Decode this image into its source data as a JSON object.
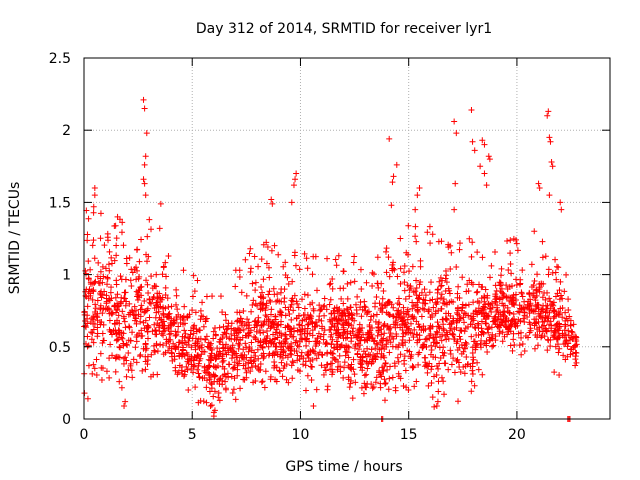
{
  "chart_data": {
    "type": "scatter",
    "title": "Day 312 of 2014, SRMTID for receiver lyr1",
    "xlabel": "GPS time / hours",
    "ylabel": "SRMTID / TECUs",
    "xlim": [
      0,
      24.3
    ],
    "ylim": [
      0,
      2.5
    ],
    "xticks": [
      0,
      5,
      10,
      15,
      20
    ],
    "xtick_labels": [
      "0",
      "5",
      "10",
      "15",
      "20"
    ],
    "yticks": [
      0,
      0.5,
      1,
      1.5,
      2,
      2.5
    ],
    "ytick_labels": [
      "0",
      "0.5",
      "1",
      "1.5",
      "2",
      "2.5"
    ],
    "grid": true,
    "marker": "+",
    "color": "#ff0000",
    "envelope": {
      "description": "approximate per-hour band of the dense point cloud (hour: [low, high] in TECU)",
      "hours": [
        0,
        1,
        2,
        3,
        4,
        5,
        6,
        7,
        8,
        9,
        10,
        11,
        12,
        13,
        14,
        15,
        16,
        17,
        18,
        19,
        20,
        21,
        22,
        22.8
      ],
      "low": [
        0.25,
        0.3,
        0.12,
        0.3,
        0.3,
        0.2,
        0.05,
        0.15,
        0.2,
        0.25,
        0.3,
        0.2,
        0.25,
        0.1,
        0.2,
        0.2,
        0.1,
        0.15,
        0.2,
        0.45,
        0.45,
        0.5,
        0.35,
        0.35
      ],
      "high": [
        1.2,
        1.2,
        1.1,
        1.15,
        0.9,
        0.8,
        0.65,
        0.8,
        1.0,
        0.95,
        0.95,
        0.85,
        0.9,
        0.9,
        0.95,
        1.1,
        1.1,
        1.0,
        1.0,
        1.05,
        1.0,
        1.0,
        0.95,
        0.55
      ]
    },
    "spikes": [
      {
        "x": 0.5,
        "y": 1.6
      },
      {
        "x": 0.5,
        "y": 1.55
      },
      {
        "x": 0.45,
        "y": 1.47
      },
      {
        "x": 1.55,
        "y": 1.4
      },
      {
        "x": 2.75,
        "y": 2.21
      },
      {
        "x": 2.8,
        "y": 2.15
      },
      {
        "x": 2.9,
        "y": 1.98
      },
      {
        "x": 2.85,
        "y": 1.82
      },
      {
        "x": 2.8,
        "y": 1.76
      },
      {
        "x": 2.75,
        "y": 1.66
      },
      {
        "x": 2.8,
        "y": 1.63
      },
      {
        "x": 2.85,
        "y": 1.55
      },
      {
        "x": 3.55,
        "y": 1.49
      },
      {
        "x": 3.5,
        "y": 1.32
      },
      {
        "x": 8.65,
        "y": 1.52
      },
      {
        "x": 8.7,
        "y": 1.49
      },
      {
        "x": 9.8,
        "y": 1.7
      },
      {
        "x": 9.75,
        "y": 1.66
      },
      {
        "x": 9.7,
        "y": 1.62
      },
      {
        "x": 9.6,
        "y": 1.5
      },
      {
        "x": 14.1,
        "y": 1.94
      },
      {
        "x": 14.45,
        "y": 1.76
      },
      {
        "x": 14.3,
        "y": 1.68
      },
      {
        "x": 14.25,
        "y": 1.64
      },
      {
        "x": 14.2,
        "y": 1.48
      },
      {
        "x": 15.5,
        "y": 1.6
      },
      {
        "x": 15.4,
        "y": 1.55
      },
      {
        "x": 15.3,
        "y": 1.45
      },
      {
        "x": 17.1,
        "y": 2.06
      },
      {
        "x": 17.2,
        "y": 1.98
      },
      {
        "x": 17.15,
        "y": 1.63
      },
      {
        "x": 17.1,
        "y": 1.45
      },
      {
        "x": 17.9,
        "y": 2.14
      },
      {
        "x": 17.95,
        "y": 1.92
      },
      {
        "x": 18.05,
        "y": 1.86
      },
      {
        "x": 18.4,
        "y": 1.93
      },
      {
        "x": 18.5,
        "y": 1.9
      },
      {
        "x": 18.7,
        "y": 1.82
      },
      {
        "x": 18.75,
        "y": 1.8
      },
      {
        "x": 18.3,
        "y": 1.75
      },
      {
        "x": 18.5,
        "y": 1.7
      },
      {
        "x": 18.6,
        "y": 1.62
      },
      {
        "x": 21.45,
        "y": 2.13
      },
      {
        "x": 21.4,
        "y": 2.1
      },
      {
        "x": 21.5,
        "y": 1.95
      },
      {
        "x": 21.55,
        "y": 1.92
      },
      {
        "x": 21.6,
        "y": 1.78
      },
      {
        "x": 21.65,
        "y": 1.75
      },
      {
        "x": 21.0,
        "y": 1.63
      },
      {
        "x": 21.05,
        "y": 1.6
      },
      {
        "x": 21.5,
        "y": 1.55
      },
      {
        "x": 22.0,
        "y": 1.5
      },
      {
        "x": 22.05,
        "y": 1.45
      },
      {
        "x": 20.8,
        "y": 1.3
      },
      {
        "x": 13.75,
        "y": 0.0
      },
      {
        "x": 13.8,
        "y": 0.0
      },
      {
        "x": 22.35,
        "y": 0.0
      },
      {
        "x": 22.4,
        "y": 0.0
      },
      {
        "x": 22.45,
        "y": 0.0
      },
      {
        "x": 6.0,
        "y": 0.02
      },
      {
        "x": 6.05,
        "y": 0.06
      },
      {
        "x": 1.85,
        "y": 0.09
      },
      {
        "x": 1.9,
        "y": 0.12
      },
      {
        "x": 10.6,
        "y": 0.09
      },
      {
        "x": 16.3,
        "y": 0.09
      },
      {
        "x": 16.35,
        "y": 0.12
      }
    ],
    "n_points": 2600,
    "seed": 312
  }
}
